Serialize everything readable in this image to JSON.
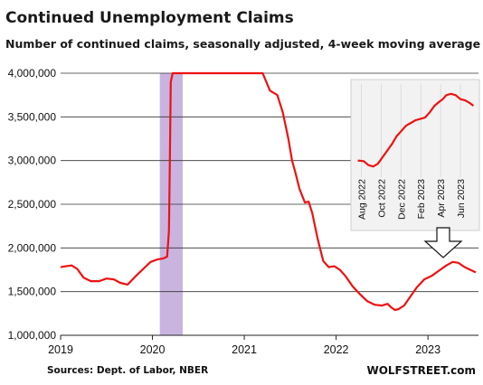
{
  "chart_data": {
    "type": "line",
    "title": "Continued  Unemployment  Claims",
    "subtitle": "Number of continued claims, seasonally adjusted, 4-week moving average",
    "source": "Sources: Dept. of Labor, NBER",
    "brand": "WOLFSTREET.com",
    "line_color": "#ee1111",
    "recession_color": "#c9b4e0",
    "ylim": [
      1000000,
      4000000
    ],
    "y_ticks": [
      "1,000,000",
      "1,500,000",
      "2,000,000",
      "2,500,000",
      "3,000,000",
      "3,500,000",
      "4,000,000"
    ],
    "x_ticks": [
      "2019",
      "2020",
      "2021",
      "2022",
      "2023"
    ],
    "grid": true,
    "recession_shading": {
      "start": 2020.08,
      "end": 2020.33
    },
    "series": [
      {
        "x": [
          2019.0,
          2019.06,
          2019.12,
          2019.18,
          2019.25,
          2019.33,
          2019.42,
          2019.5,
          2019.58,
          2019.65,
          2019.73,
          2019.82,
          2019.9,
          2019.98,
          2020.06,
          2020.12,
          2020.16,
          2020.18,
          2020.19,
          2020.2,
          2020.22,
          2021.2,
          2021.28,
          2021.36,
          2021.42,
          2021.48,
          2021.52,
          2021.56,
          2021.6,
          2021.63,
          2021.66,
          2021.7,
          2021.74,
          2021.8,
          2021.86,
          2021.92,
          2021.98,
          2022.04,
          2022.1,
          2022.18,
          2022.26,
          2022.34,
          2022.42,
          2022.5,
          2022.56,
          2022.6,
          2022.64,
          2022.68,
          2022.74,
          2022.8,
          2022.88,
          2022.96,
          2023.04,
          2023.12,
          2023.2,
          2023.27,
          2023.33,
          2023.4,
          2023.46,
          2023.52
        ],
        "y": [
          1780000,
          1790000,
          1800000,
          1760000,
          1660000,
          1620000,
          1620000,
          1650000,
          1640000,
          1600000,
          1580000,
          1680000,
          1760000,
          1840000,
          1870000,
          1880000,
          1900000,
          2200000,
          3000000,
          3900000,
          4000000,
          4000000,
          3800000,
          3750000,
          3550000,
          3250000,
          3000000,
          2850000,
          2680000,
          2600000,
          2520000,
          2530000,
          2400000,
          2100000,
          1850000,
          1780000,
          1790000,
          1750000,
          1680000,
          1560000,
          1470000,
          1390000,
          1350000,
          1340000,
          1360000,
          1320000,
          1290000,
          1300000,
          1340000,
          1430000,
          1550000,
          1640000,
          1680000,
          1740000,
          1800000,
          1840000,
          1830000,
          1780000,
          1750000,
          1720000
        ]
      }
    ],
    "inset": {
      "x_ticks": [
        "Aug 2022",
        "Oct 2022",
        "Dec 2022",
        "Feb 2023",
        "Apr 2023",
        "Jun 2023"
      ],
      "x": [
        2022.55,
        2022.6,
        2022.64,
        2022.68,
        2022.72,
        2022.76,
        2022.8,
        2022.84,
        2022.88,
        2022.92,
        2022.96,
        2023.0,
        2023.04,
        2023.08,
        2023.12,
        2023.16,
        2023.2,
        2023.24,
        2023.27,
        2023.3,
        2023.34,
        2023.38,
        2023.42,
        2023.46,
        2023.5,
        2023.53
      ],
      "y": [
        1335000,
        1330000,
        1300000,
        1290000,
        1310000,
        1360000,
        1410000,
        1460000,
        1520000,
        1560000,
        1600000,
        1620000,
        1640000,
        1650000,
        1660000,
        1700000,
        1750000,
        1780000,
        1800000,
        1830000,
        1840000,
        1830000,
        1800000,
        1790000,
        1770000,
        1750000
      ]
    }
  }
}
